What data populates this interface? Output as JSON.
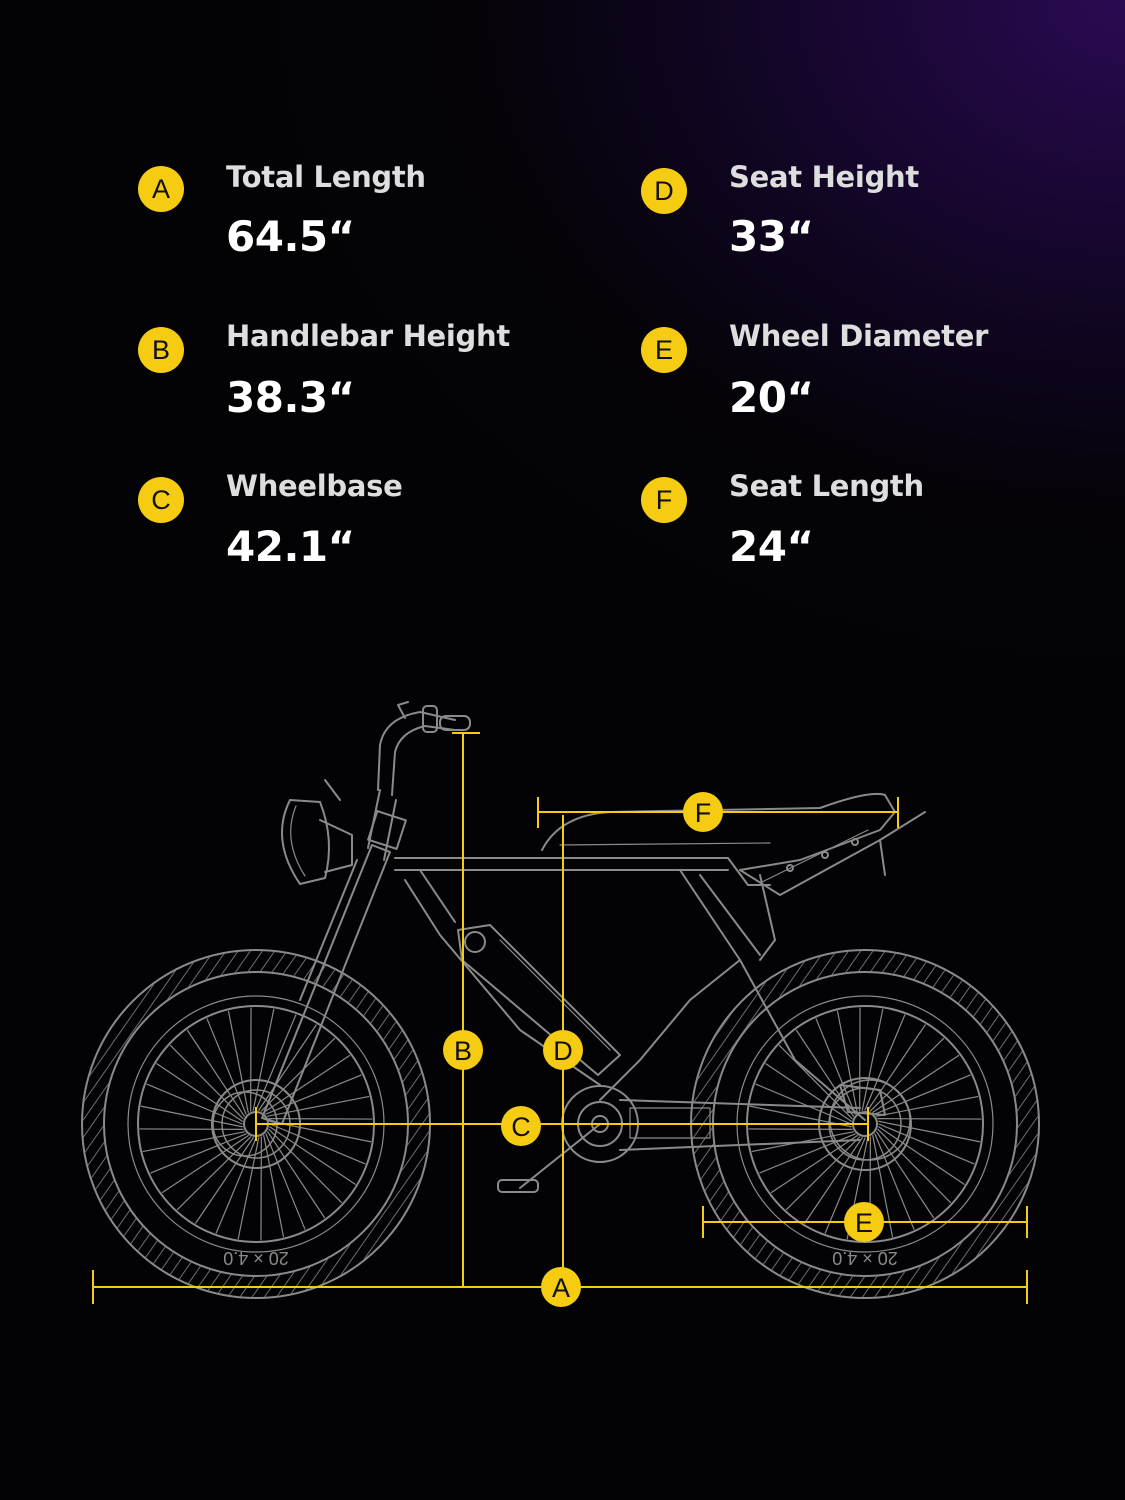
{
  "specs": [
    {
      "letter": "A",
      "label": "Total Length",
      "value": "64.5“"
    },
    {
      "letter": "B",
      "label": "Handlebar Height",
      "value": "38.3“"
    },
    {
      "letter": "C",
      "label": "Wheelbase",
      "value": "42.1“"
    },
    {
      "letter": "D",
      "label": "Seat Height",
      "value": "33“"
    },
    {
      "letter": "E",
      "label": "Wheel Diameter",
      "value": "20“"
    },
    {
      "letter": "F",
      "label": "Seat Length",
      "value": "24“"
    }
  ],
  "tire_marking": "20 × 4.0",
  "colors": {
    "accent": "#f5cc12",
    "line_art": "#8a8a8a",
    "text": "#ffffff"
  }
}
